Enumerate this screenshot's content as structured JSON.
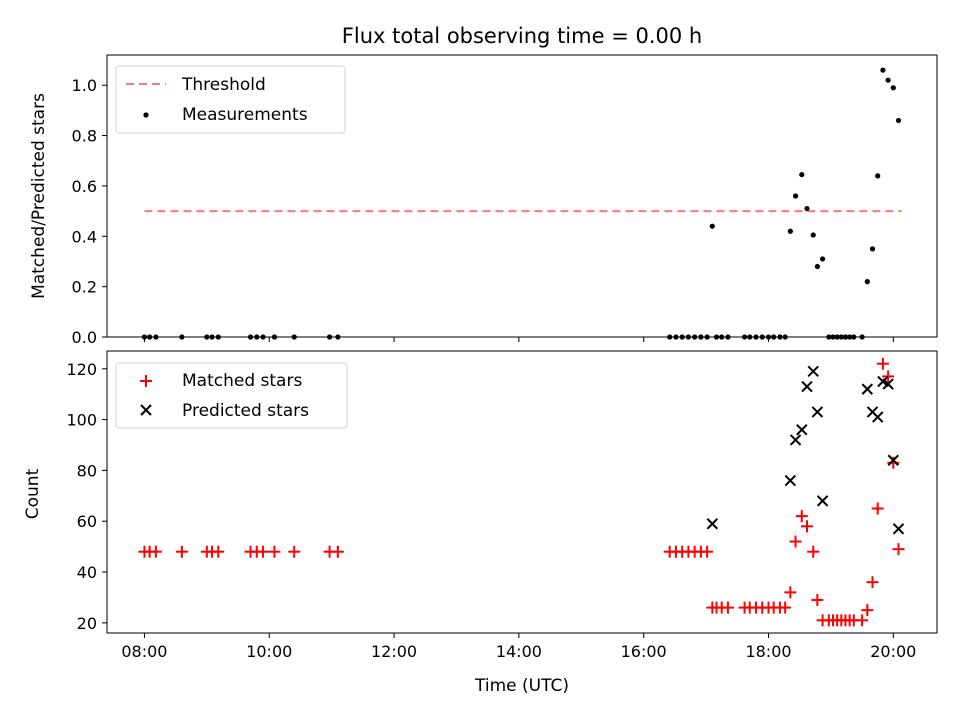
{
  "chart_data": [
    {
      "type": "scatter",
      "title": "Flux total observing time = 0.00 h",
      "xlabel": "",
      "ylabel": "Matched/Predicted stars",
      "xlim": [
        "07:24",
        "20:42"
      ],
      "ylim": [
        0,
        1.12
      ],
      "yticks": [
        0.0,
        0.2,
        0.4,
        0.6,
        0.8,
        1.0
      ],
      "ytick_labels": [
        "0.0",
        "0.2",
        "0.4",
        "0.6",
        "0.8",
        "1.0"
      ],
      "xticks": [
        "08:00",
        "10:00",
        "12:00",
        "14:00",
        "16:00",
        "18:00",
        "20:00"
      ],
      "legend_position": "top-left",
      "series": [
        {
          "name": "Threshold",
          "style": "dashed-line",
          "color": "#ff7777",
          "points": [
            [
              "08:00",
              0.5
            ],
            [
              "20:08",
              0.5
            ]
          ]
        },
        {
          "name": "Measurements",
          "style": "dot",
          "color": "#000000",
          "points": [
            [
              "08:00",
              0
            ],
            [
              "08:05",
              0
            ],
            [
              "08:11",
              0
            ],
            [
              "08:36",
              0
            ],
            [
              "09:00",
              0
            ],
            [
              "09:05",
              0
            ],
            [
              "09:11",
              0
            ],
            [
              "09:42",
              0
            ],
            [
              "09:48",
              0
            ],
            [
              "09:54",
              0
            ],
            [
              "10:05",
              0
            ],
            [
              "10:24",
              0
            ],
            [
              "10:58",
              0
            ],
            [
              "11:06",
              0
            ],
            [
              "16:25",
              0
            ],
            [
              "16:31",
              0
            ],
            [
              "16:37",
              0
            ],
            [
              "16:43",
              0
            ],
            [
              "16:49",
              0
            ],
            [
              "16:55",
              0
            ],
            [
              "17:01",
              0
            ],
            [
              "17:06",
              0.44
            ],
            [
              "17:10",
              0
            ],
            [
              "17:15",
              0
            ],
            [
              "17:21",
              0
            ],
            [
              "17:37",
              0
            ],
            [
              "17:42",
              0
            ],
            [
              "17:48",
              0
            ],
            [
              "17:54",
              0
            ],
            [
              "18:00",
              0
            ],
            [
              "18:05",
              0
            ],
            [
              "18:11",
              0
            ],
            [
              "18:16",
              0
            ],
            [
              "18:21",
              0.42
            ],
            [
              "18:26",
              0.56
            ],
            [
              "18:32",
              0.645
            ],
            [
              "18:37",
              0.51
            ],
            [
              "18:43",
              0.405
            ],
            [
              "18:47",
              0.28
            ],
            [
              "18:52",
              0.31
            ],
            [
              "18:58",
              0
            ],
            [
              "19:02",
              0
            ],
            [
              "19:06",
              0
            ],
            [
              "19:10",
              0
            ],
            [
              "19:14",
              0
            ],
            [
              "19:18",
              0
            ],
            [
              "19:22",
              0
            ],
            [
              "19:30",
              0
            ],
            [
              "19:35",
              0.22
            ],
            [
              "19:40",
              0.35
            ],
            [
              "19:45",
              0.64
            ],
            [
              "19:50",
              1.06
            ],
            [
              "19:55",
              1.02
            ],
            [
              "20:00",
              0.99
            ],
            [
              "20:05",
              0.86
            ]
          ]
        }
      ]
    },
    {
      "type": "scatter",
      "title": "",
      "xlabel": "Time (UTC)",
      "ylabel": "Count",
      "xlim": [
        "07:24",
        "20:42"
      ],
      "ylim": [
        16,
        127
      ],
      "yticks": [
        20,
        40,
        60,
        80,
        100,
        120
      ],
      "ytick_labels": [
        "20",
        "40",
        "60",
        "80",
        "100",
        "120"
      ],
      "xticks": [
        "08:00",
        "10:00",
        "12:00",
        "14:00",
        "16:00",
        "18:00",
        "20:00"
      ],
      "xtick_labels": [
        "08:00",
        "10:00",
        "12:00",
        "14:00",
        "16:00",
        "18:00",
        "20:00"
      ],
      "legend_position": "top-left",
      "series": [
        {
          "name": "Matched stars",
          "style": "plus",
          "color": "#ff0000",
          "points": [
            [
              "08:00",
              48
            ],
            [
              "08:05",
              48
            ],
            [
              "08:11",
              48
            ],
            [
              "08:36",
              48
            ],
            [
              "09:00",
              48
            ],
            [
              "09:05",
              48
            ],
            [
              "09:11",
              48
            ],
            [
              "09:42",
              48
            ],
            [
              "09:48",
              48
            ],
            [
              "09:54",
              48
            ],
            [
              "10:05",
              48
            ],
            [
              "10:24",
              48
            ],
            [
              "10:58",
              48
            ],
            [
              "11:06",
              48
            ],
            [
              "16:25",
              48
            ],
            [
              "16:31",
              48
            ],
            [
              "16:37",
              48
            ],
            [
              "16:43",
              48
            ],
            [
              "16:49",
              48
            ],
            [
              "16:55",
              48
            ],
            [
              "17:01",
              48
            ],
            [
              "17:06",
              26
            ],
            [
              "17:10",
              26
            ],
            [
              "17:15",
              26
            ],
            [
              "17:21",
              26
            ],
            [
              "17:37",
              26
            ],
            [
              "17:42",
              26
            ],
            [
              "17:48",
              26
            ],
            [
              "17:54",
              26
            ],
            [
              "18:00",
              26
            ],
            [
              "18:05",
              26
            ],
            [
              "18:11",
              26
            ],
            [
              "18:16",
              26
            ],
            [
              "18:21",
              32
            ],
            [
              "18:26",
              52
            ],
            [
              "18:32",
              62
            ],
            [
              "18:37",
              58
            ],
            [
              "18:43",
              48
            ],
            [
              "18:47",
              29
            ],
            [
              "18:52",
              21
            ],
            [
              "18:58",
              21
            ],
            [
              "19:02",
              21
            ],
            [
              "19:06",
              21
            ],
            [
              "19:10",
              21
            ],
            [
              "19:14",
              21
            ],
            [
              "19:18",
              21
            ],
            [
              "19:22",
              21
            ],
            [
              "19:30",
              21
            ],
            [
              "19:35",
              25
            ],
            [
              "19:40",
              36
            ],
            [
              "19:45",
              65
            ],
            [
              "19:50",
              122
            ],
            [
              "19:55",
              117
            ],
            [
              "20:00",
              83
            ],
            [
              "20:05",
              49
            ]
          ]
        },
        {
          "name": "Predicted stars",
          "style": "x",
          "color": "#000000",
          "points": [
            [
              "17:06",
              59
            ],
            [
              "18:21",
              76
            ],
            [
              "18:26",
              92
            ],
            [
              "18:32",
              96
            ],
            [
              "18:37",
              113
            ],
            [
              "18:43",
              119
            ],
            [
              "18:47",
              103
            ],
            [
              "18:52",
              68
            ],
            [
              "19:35",
              112
            ],
            [
              "19:40",
              103
            ],
            [
              "19:45",
              101
            ],
            [
              "19:50",
              115
            ],
            [
              "19:55",
              114
            ],
            [
              "20:00",
              84
            ],
            [
              "20:05",
              57
            ]
          ]
        }
      ]
    }
  ]
}
